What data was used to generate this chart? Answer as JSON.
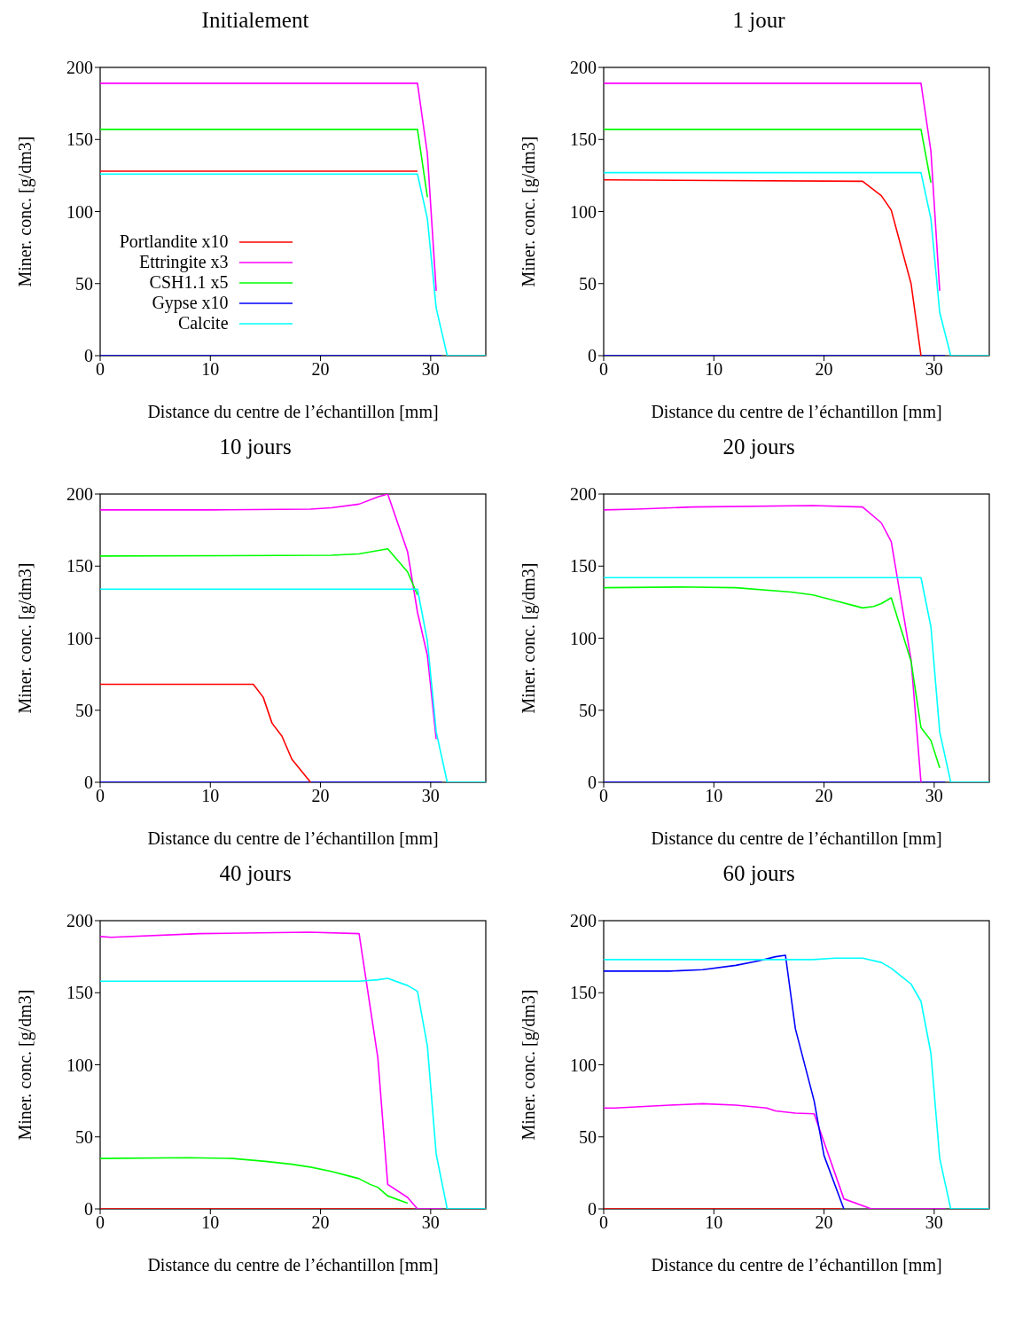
{
  "chart_data": [
    {
      "type": "line",
      "title": "Initialement",
      "xlabel": "Distance du centre de l’échantillon [mm]",
      "ylabel": "Miner. conc. [g/dm3]",
      "xlim": [
        0,
        35
      ],
      "xticks": [
        0,
        10,
        20,
        30
      ],
      "ylim": [
        0,
        200
      ],
      "yticks": [
        0,
        50,
        100,
        150,
        200
      ],
      "marker": "none",
      "legend": "bottom left",
      "series": [
        {
          "name": "Portlandite x10",
          "color": "#ff0000",
          "x": [
            0,
            28.8
          ],
          "values": [
            128,
            128
          ]
        },
        {
          "name": "Ettringite x3",
          "color": "#ff00ff",
          "x": [
            0,
            28.8,
            29.7,
            30.5
          ],
          "values": [
            189,
            189,
            140,
            45
          ]
        },
        {
          "name": "CSH1.1 x5",
          "color": "#00ff00",
          "x": [
            0,
            28.8,
            29.7
          ],
          "values": [
            157,
            157,
            110
          ]
        },
        {
          "name": "Gypse x10",
          "color": "#0000ff",
          "x": [
            0,
            31
          ],
          "values": [
            0,
            0
          ]
        },
        {
          "name": "Calcite",
          "color": "#00ffff",
          "x": [
            0,
            28.8,
            29.7,
            30.5,
            31.5,
            35
          ],
          "values": [
            126,
            126,
            95,
            33,
            0,
            0
          ]
        }
      ]
    },
    {
      "type": "line",
      "title": "1 jour",
      "xlabel": "Distance du centre de l’échantillon [mm]",
      "ylabel": "Miner. conc. [g/dm3]",
      "xlim": [
        0,
        35
      ],
      "xticks": [
        0,
        10,
        20,
        30
      ],
      "ylim": [
        0,
        200
      ],
      "yticks": [
        0,
        50,
        100,
        150,
        200
      ],
      "marker": "none",
      "series": [
        {
          "color": "#0000ff",
          "x": [
            0,
            31
          ],
          "values": [
            0,
            0
          ]
        },
        {
          "color": "#ff0000",
          "x": [
            0,
            23.5,
            25.2,
            26.1,
            27.9,
            28.8
          ],
          "values": [
            122,
            121,
            111,
            101,
            50,
            0
          ]
        },
        {
          "color": "#ff00ff",
          "x": [
            0,
            28.8,
            29.7,
            30.5
          ],
          "values": [
            189,
            189,
            142,
            45
          ]
        },
        {
          "color": "#00ff00",
          "x": [
            0,
            28.8,
            29.7
          ],
          "values": [
            157,
            157,
            120
          ]
        },
        {
          "color": "#00ffff",
          "x": [
            0,
            28.8,
            29.7,
            30.5,
            31.5,
            35
          ],
          "values": [
            127,
            127,
            95,
            30,
            0,
            0
          ]
        }
      ]
    },
    {
      "type": "line",
      "title": "10 jours",
      "xlabel": "Distance du centre de l’échantillon [mm]",
      "ylabel": "Miner. conc. [g/dm3]",
      "xlim": [
        0,
        35
      ],
      "xticks": [
        0,
        10,
        20,
        30
      ],
      "ylim": [
        0,
        200
      ],
      "yticks": [
        0,
        50,
        100,
        150,
        200
      ],
      "marker": "none",
      "series": [
        {
          "color": "#0000ff",
          "x": [
            0,
            31
          ],
          "values": [
            0,
            0
          ]
        },
        {
          "color": "#ff0000",
          "x": [
            0,
            13.9,
            14.8,
            15.6,
            16.5,
            17.4,
            19.1
          ],
          "values": [
            68,
            68,
            59,
            41,
            32,
            16,
            0
          ]
        },
        {
          "color": "#ff00ff",
          "x": [
            0,
            10,
            19.1,
            21,
            23.5,
            25.2,
            26.1,
            27.9,
            28.8,
            29.7,
            30.5
          ],
          "values": [
            189,
            189,
            189.5,
            190.5,
            193,
            198,
            200,
            160,
            118,
            88,
            30
          ]
        },
        {
          "color": "#00ff00",
          "x": [
            0,
            21,
            23.5,
            26.1,
            27.9,
            28.8
          ],
          "values": [
            157,
            157.5,
            158.5,
            162,
            146,
            130
          ]
        },
        {
          "color": "#00ffff",
          "x": [
            0,
            28.8,
            29.7,
            30.5,
            31.5,
            35
          ],
          "values": [
            134,
            134,
            98,
            35,
            0,
            0
          ]
        }
      ]
    },
    {
      "type": "line",
      "title": "20 jours",
      "xlabel": "Distance du centre de l’échantillon [mm]",
      "ylabel": "Miner. conc. [g/dm3]",
      "xlim": [
        0,
        35
      ],
      "xticks": [
        0,
        10,
        20,
        30
      ],
      "ylim": [
        0,
        200
      ],
      "yticks": [
        0,
        50,
        100,
        150,
        200
      ],
      "marker": "none",
      "series": [
        {
          "color": "#0000ff",
          "x": [
            0,
            31
          ],
          "values": [
            0,
            0
          ]
        },
        {
          "color": "#ff00ff",
          "x": [
            0,
            3,
            8,
            19,
            23.5,
            25.2,
            26.1,
            27.9,
            28.8
          ],
          "values": [
            189,
            189.5,
            191,
            192,
            191,
            180,
            167,
            85,
            0
          ]
        },
        {
          "color": "#00ff00",
          "x": [
            0,
            7,
            12,
            17,
            19,
            21,
            22.5,
            23.5,
            24.5,
            25.2,
            26.1,
            27.9,
            28.8,
            29.7,
            30.5
          ],
          "values": [
            135,
            135.5,
            135,
            132,
            130,
            126,
            123,
            121,
            122,
            124,
            128,
            84,
            38,
            29,
            10
          ]
        },
        {
          "color": "#00ffff",
          "x": [
            0,
            28.8,
            29.7,
            30.5,
            31.5,
            35
          ],
          "values": [
            142,
            142,
            108,
            35,
            0,
            0
          ]
        }
      ]
    },
    {
      "type": "line",
      "title": "40 jours",
      "xlabel": "Distance du centre de l’échantillon [mm]",
      "ylabel": "Miner. conc. [g/dm3]",
      "xlim": [
        0,
        35
      ],
      "xticks": [
        0,
        10,
        20,
        30
      ],
      "ylim": [
        0,
        200
      ],
      "yticks": [
        0,
        50,
        100,
        150,
        200
      ],
      "marker": "none",
      "series": [
        {
          "color": "#ff0000",
          "x": [
            0,
            28.5
          ],
          "values": [
            0,
            0
          ]
        },
        {
          "color": "#ff00ff",
          "x": [
            0,
            1,
            9,
            19,
            23.5,
            25.2,
            26.1,
            27.9,
            28.8,
            31
          ],
          "values": [
            189,
            188.5,
            191,
            192,
            191,
            105,
            17,
            8,
            0,
            0
          ]
        },
        {
          "color": "#00ff00",
          "x": [
            0,
            8,
            12,
            15,
            17.4,
            19.1,
            21,
            22.5,
            23.5,
            24.5,
            25.2,
            26.1,
            27.9
          ],
          "values": [
            35,
            35.5,
            35,
            33,
            31,
            29,
            26,
            23,
            21,
            17,
            15,
            9,
            4
          ]
        },
        {
          "color": "#00ffff",
          "x": [
            0,
            23.5,
            25.2,
            26.1,
            27.9,
            28.8,
            29.7,
            30.5,
            31.5,
            35
          ],
          "values": [
            158,
            158,
            159,
            160,
            155,
            151,
            113,
            38,
            0,
            0
          ]
        }
      ]
    },
    {
      "type": "line",
      "title": "60 jours",
      "xlabel": "Distance du centre de l’échantillon [mm]",
      "ylabel": "Miner. conc. [g/dm3]",
      "xlim": [
        0,
        35
      ],
      "xticks": [
        0,
        10,
        20,
        30
      ],
      "ylim": [
        0,
        200
      ],
      "yticks": [
        0,
        50,
        100,
        150,
        200
      ],
      "marker": "none",
      "series": [
        {
          "color": "#ff0000",
          "x": [
            0,
            21.5
          ],
          "values": [
            0,
            0
          ]
        },
        {
          "color": "#ff00ff",
          "x": [
            0,
            1,
            6,
            9,
            12,
            14.8,
            15.6,
            17.4,
            19.1,
            21.8,
            24.3,
            31
          ],
          "values": [
            70,
            70,
            72,
            73,
            72,
            70,
            68,
            66.5,
            66,
            7,
            0,
            0
          ]
        },
        {
          "color": "#0000ff",
          "x": [
            0,
            6,
            9,
            12,
            14,
            15.6,
            16.5,
            17.4,
            19.1,
            20,
            21.8
          ],
          "values": [
            165,
            165,
            166,
            169,
            172,
            175,
            176,
            125,
            75,
            37,
            0
          ]
        },
        {
          "color": "#00ffff",
          "x": [
            0,
            19,
            21,
            23.5,
            25.2,
            26.1,
            27.9,
            28.8,
            29.7,
            30.5,
            31.5,
            35
          ],
          "values": [
            173,
            173,
            174,
            174,
            171,
            167,
            156,
            144,
            108,
            35,
            0,
            0
          ]
        }
      ]
    }
  ]
}
